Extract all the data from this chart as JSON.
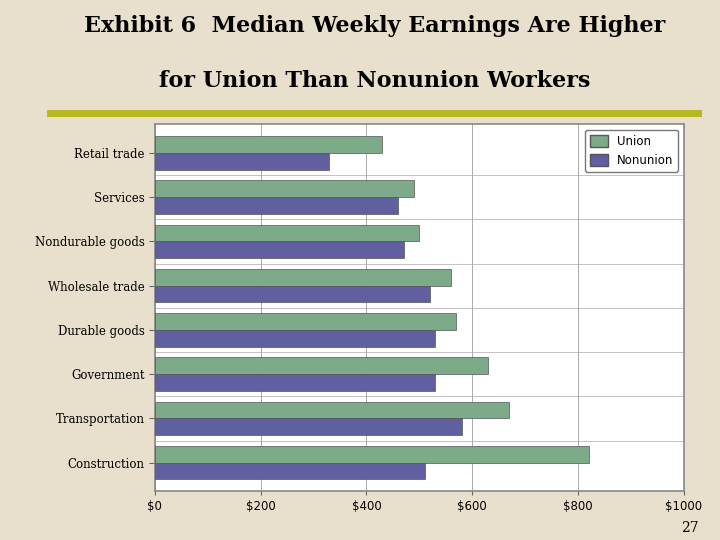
{
  "title_line1": "Exhibit 6  Median Weekly Earnings Are Higher",
  "title_line2": "for Union Than Nonunion Workers",
  "categories": [
    "Construction",
    "Transportation",
    "Government",
    "Durable goods",
    "Wholesale trade",
    "Nondurable goods",
    "Services",
    "Retail trade"
  ],
  "union_values": [
    820,
    670,
    630,
    570,
    560,
    500,
    490,
    430
  ],
  "nonunion_values": [
    510,
    580,
    530,
    530,
    520,
    470,
    460,
    330
  ],
  "union_color": "#7dab8a",
  "nonunion_color": "#6060a0",
  "xlim": [
    0,
    1000
  ],
  "xtick_values": [
    0,
    200,
    400,
    600,
    800,
    1000
  ],
  "xtick_labels": [
    "$0",
    "$200",
    "$400",
    "$600",
    "$800",
    "$1000"
  ],
  "legend_labels": [
    "Union",
    "Nonunion"
  ],
  "bg_color": "#e8e0cc",
  "chart_bg_color": "#ffffff",
  "chart_border_color": "#888888",
  "title_fontsize": 16,
  "label_fontsize": 8.5,
  "bar_height": 0.38,
  "page_number": "27",
  "left_bar_color": "#8888bb",
  "olive_line_color": "#b8b820"
}
